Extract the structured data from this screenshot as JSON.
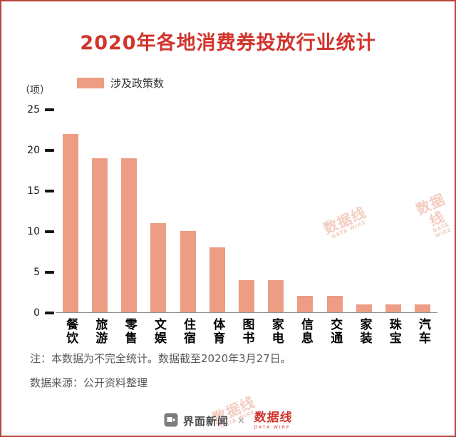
{
  "title": "2020年各地消费券投放行业统计",
  "legend": {
    "label": "涉及政策数"
  },
  "y_axis": {
    "unit": "（项）",
    "ticks": [
      0,
      5,
      10,
      15,
      20,
      25
    ]
  },
  "chart_data": {
    "type": "bar",
    "title": "2020年各地消费券投放行业统计",
    "series_name": "涉及政策数",
    "categories": [
      "餐饮",
      "旅游",
      "零售",
      "文娱",
      "住宿",
      "体育",
      "图书",
      "家电",
      "信息",
      "交通",
      "家装",
      "珠宝",
      "汽车"
    ],
    "values": [
      22,
      19,
      19,
      11,
      10,
      8,
      4,
      4,
      2,
      2,
      1,
      1,
      1
    ],
    "xlabel": "",
    "ylabel": "（项）",
    "ylim": [
      0,
      25
    ],
    "grid": false,
    "legend_position": "top-left",
    "bar_color": "#EC9D84"
  },
  "notes": {
    "disclaimer": "注：本数据为不完全统计。数据截至2020年3月27日。",
    "source": "数据来源：公开资料整理"
  },
  "footer": {
    "jiemian_label": "界面新闻",
    "separator": "×",
    "datawire_label": "数据线",
    "datawire_caption": "DATA WIRE"
  },
  "watermark": {
    "text": "数据线",
    "caption": "DATA WIRE"
  },
  "colors": {
    "accent_red": "#d0342c",
    "bar": "#EC9D84",
    "border": "#b9463e"
  }
}
